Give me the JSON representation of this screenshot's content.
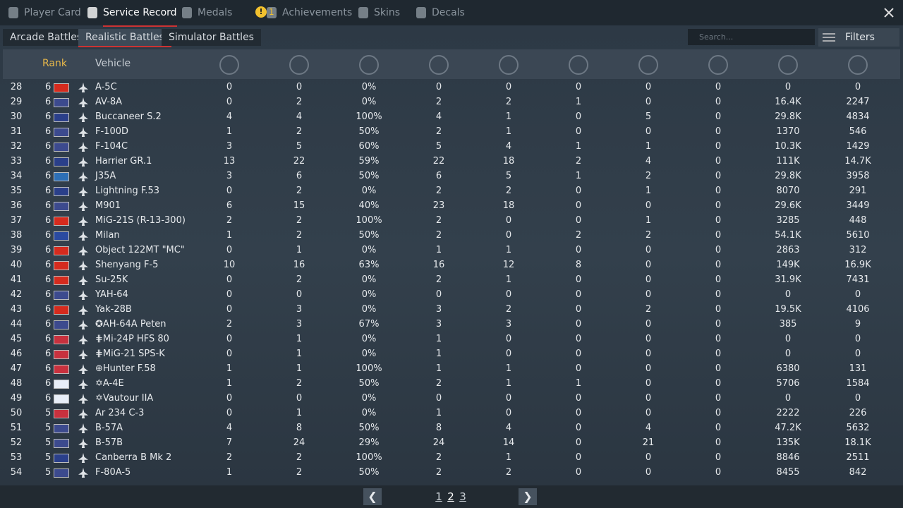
{
  "tabs": [
    "Player Card",
    "Service Record",
    "Medals",
    "Achievements",
    "Skins",
    "Decals"
  ],
  "achievements_badge": "!",
  "achievements_count": "1",
  "mode_tabs": [
    "Arcade Battles",
    "Realistic Battles",
    "Simulator Battles"
  ],
  "search_placeholder": "Search...",
  "filters": "Filters",
  "table": {
    "headers": [
      "Rank",
      "Vehicle"
    ],
    "rows": [
      [
        "28",
        "6",
        "A-5C",
        "0",
        "0",
        "0%",
        "0",
        "0",
        "0",
        "0",
        "0",
        "0",
        "0"
      ],
      [
        "29",
        "6",
        "AV-8A",
        "0",
        "2",
        "0%",
        "2",
        "2",
        "1",
        "0",
        "0",
        "16.4K",
        "2247"
      ],
      [
        "30",
        "6",
        "Buccaneer S.2",
        "4",
        "4",
        "100%",
        "4",
        "1",
        "0",
        "5",
        "0",
        "29.8K",
        "4834"
      ],
      [
        "31",
        "6",
        "F-100D",
        "1",
        "2",
        "50%",
        "2",
        "1",
        "0",
        "0",
        "0",
        "1370",
        "546"
      ],
      [
        "32",
        "6",
        "F-104C",
        "3",
        "5",
        "60%",
        "5",
        "4",
        "1",
        "1",
        "0",
        "10.3K",
        "1429"
      ],
      [
        "33",
        "6",
        "Harrier GR.1",
        "13",
        "22",
        "59%",
        "22",
        "18",
        "2",
        "4",
        "0",
        "111K",
        "14.7K"
      ],
      [
        "34",
        "6",
        "J35A",
        "3",
        "6",
        "50%",
        "6",
        "5",
        "1",
        "2",
        "0",
        "29.8K",
        "3958"
      ],
      [
        "35",
        "6",
        "Lightning F.53",
        "0",
        "2",
        "0%",
        "2",
        "2",
        "0",
        "1",
        "0",
        "8070",
        "291"
      ],
      [
        "36",
        "6",
        "M901",
        "6",
        "15",
        "40%",
        "23",
        "18",
        "0",
        "0",
        "0",
        "29.6K",
        "3449"
      ],
      [
        "37",
        "6",
        "MiG-21S (R-13-300)",
        "2",
        "2",
        "100%",
        "2",
        "0",
        "0",
        "1",
        "0",
        "3285",
        "448"
      ],
      [
        "38",
        "6",
        "Milan",
        "1",
        "2",
        "50%",
        "2",
        "0",
        "2",
        "2",
        "0",
        "54.1K",
        "5610"
      ],
      [
        "39",
        "6",
        "Object 122MT \"MC\"",
        "0",
        "1",
        "0%",
        "1",
        "1",
        "0",
        "0",
        "0",
        "2863",
        "312"
      ],
      [
        "40",
        "6",
        "Shenyang F-5",
        "10",
        "16",
        "63%",
        "16",
        "12",
        "8",
        "0",
        "0",
        "149K",
        "16.9K"
      ],
      [
        "41",
        "6",
        "Su-25K",
        "0",
        "2",
        "0%",
        "2",
        "1",
        "0",
        "0",
        "0",
        "31.9K",
        "7431"
      ],
      [
        "42",
        "6",
        "YAH-64",
        "0",
        "0",
        "0%",
        "0",
        "0",
        "0",
        "0",
        "0",
        "0",
        "0"
      ],
      [
        "43",
        "6",
        "Yak-28B",
        "0",
        "3",
        "0%",
        "3",
        "2",
        "0",
        "2",
        "0",
        "19.5K",
        "4106"
      ],
      [
        "44",
        "6",
        "✪AH-64A Peten",
        "2",
        "3",
        "67%",
        "3",
        "3",
        "0",
        "0",
        "0",
        "385",
        "9"
      ],
      [
        "45",
        "6",
        "⋕Mi-24P HFS 80",
        "0",
        "1",
        "0%",
        "1",
        "0",
        "0",
        "0",
        "0",
        "0",
        "0"
      ],
      [
        "46",
        "6",
        "⋕MiG-21 SPS-K",
        "0",
        "1",
        "0%",
        "1",
        "0",
        "0",
        "0",
        "0",
        "0",
        "0"
      ],
      [
        "47",
        "6",
        "⊕Hunter F.58",
        "1",
        "1",
        "100%",
        "1",
        "1",
        "0",
        "0",
        "0",
        "6380",
        "131"
      ],
      [
        "48",
        "6",
        "✡A-4E",
        "1",
        "2",
        "50%",
        "2",
        "1",
        "1",
        "0",
        "0",
        "5706",
        "1584"
      ],
      [
        "49",
        "6",
        "✡Vautour IIA",
        "0",
        "0",
        "0%",
        "0",
        "0",
        "0",
        "0",
        "0",
        "0",
        "0"
      ],
      [
        "50",
        "5",
        "Ar 234 C-3",
        "0",
        "1",
        "0%",
        "1",
        "0",
        "0",
        "0",
        "0",
        "2222",
        "226"
      ],
      [
        "51",
        "5",
        "B-57A",
        "4",
        "8",
        "50%",
        "8",
        "4",
        "0",
        "4",
        "0",
        "47.2K",
        "5632"
      ],
      [
        "52",
        "5",
        "B-57B",
        "7",
        "24",
        "29%",
        "24",
        "14",
        "0",
        "21",
        "0",
        "135K",
        "18.1K"
      ],
      [
        "53",
        "5",
        "Canberra B Mk 2",
        "2",
        "2",
        "100%",
        "2",
        "1",
        "0",
        "0",
        "0",
        "8846",
        "2511"
      ],
      [
        "54",
        "5",
        "F-80A-5",
        "1",
        "2",
        "50%",
        "2",
        "2",
        "0",
        "0",
        "0",
        "8455",
        "842"
      ]
    ],
    "flag_colors": [
      "#d52b1e",
      "#3c4a8e",
      "#2a3f8a",
      "#3c4a8e",
      "#3c4a8e",
      "#2a3f8a",
      "#2d6fb5",
      "#2a3f8a",
      "#3c4a8e",
      "#d52b1e",
      "#2a4aa0",
      "#d52b1e",
      "#d52b1e",
      "#d52b1e",
      "#3c4a8e",
      "#d52b1e",
      "#3c4a8e",
      "#c8313e",
      "#c8313e",
      "#c8313e",
      "#e8eef8",
      "#e8eef8",
      "#c8313e",
      "#3c4a8e",
      "#3c4a8e",
      "#2a3f8a",
      "#3c4a8e"
    ]
  },
  "pages": [
    "1",
    "2",
    "3"
  ]
}
